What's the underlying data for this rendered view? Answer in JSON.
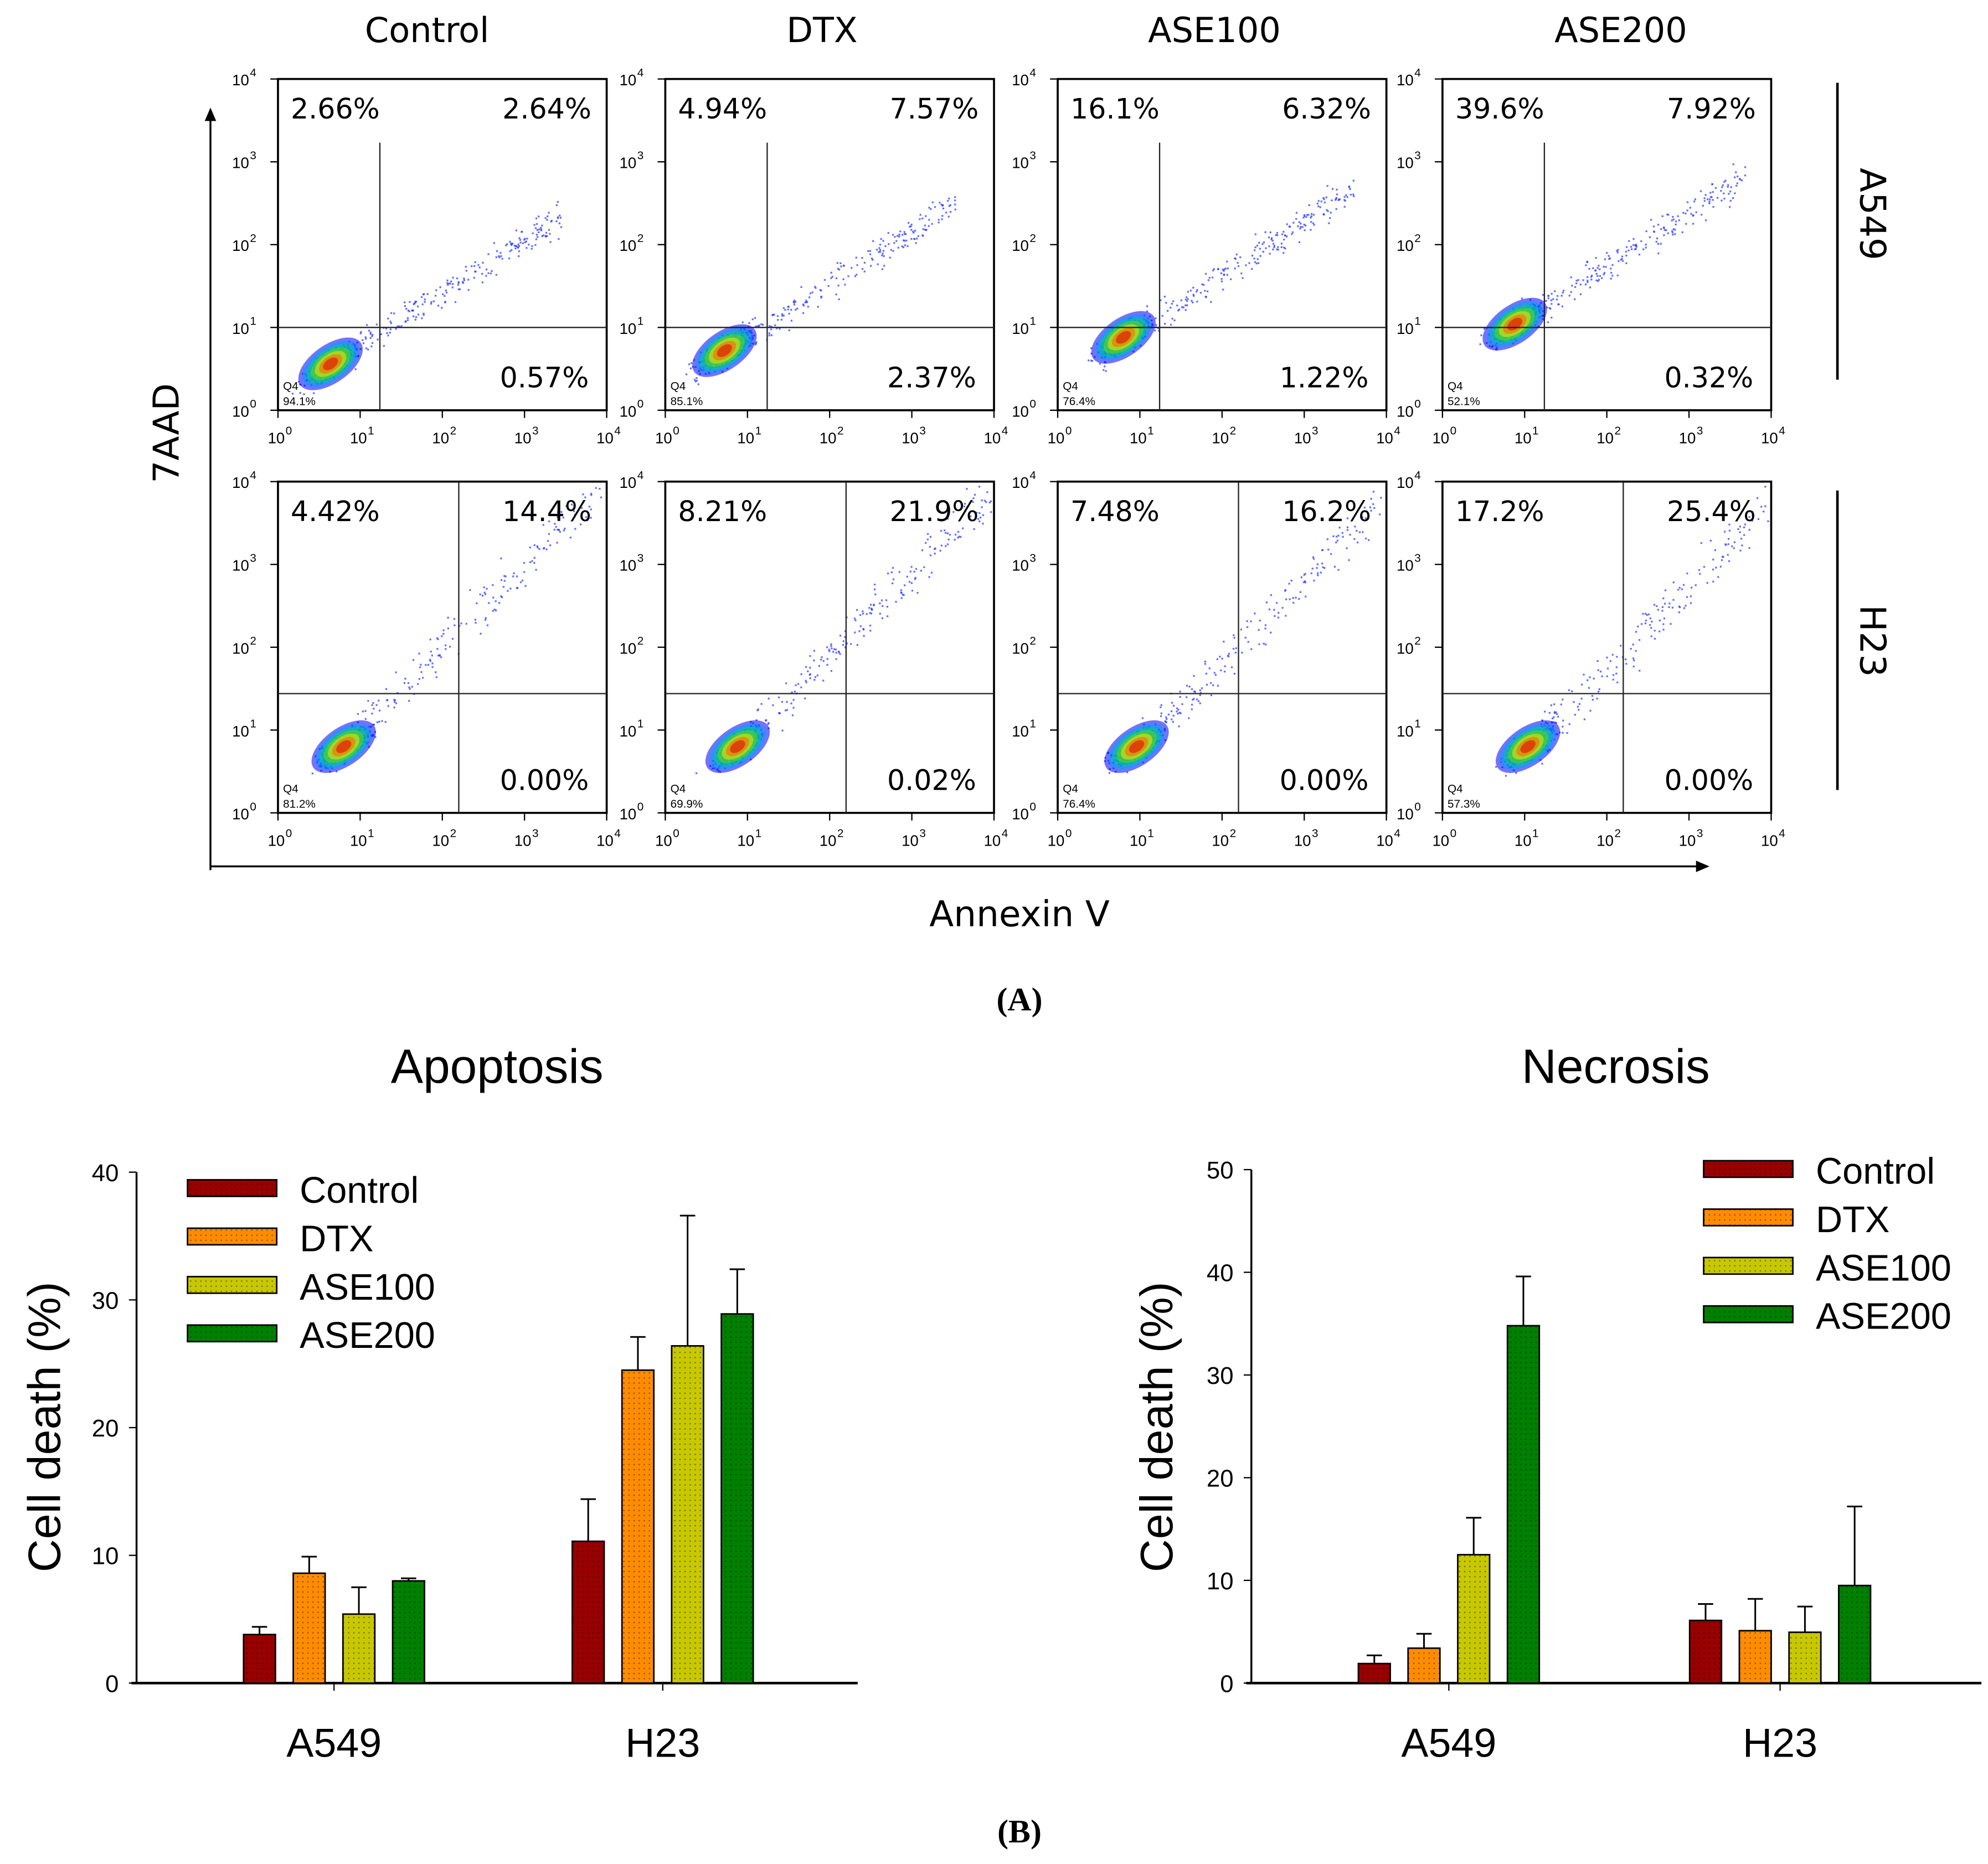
{
  "panel_a": {
    "label": "(A)",
    "x_axis_label": "Annexin V",
    "y_axis_label": "7AAD",
    "columns": [
      "Control",
      "DTX",
      "ASE100",
      "ASE200"
    ],
    "rows": [
      "A549",
      "H23"
    ],
    "tick_labels": [
      "10",
      "10",
      "10",
      "10",
      "10"
    ],
    "tick_exponents": [
      "0",
      "1",
      "2",
      "3",
      "4"
    ],
    "gate_name": "Q4",
    "plots": [
      [
        {
          "ul": "2.66%",
          "ur": "2.64%",
          "lr": "0.57%",
          "q4": "94.1%"
        },
        {
          "ul": "4.94%",
          "ur": "7.57%",
          "lr": "2.37%",
          "q4": "85.1%"
        },
        {
          "ul": "16.1%",
          "ur": "6.32%",
          "lr": "1.22%",
          "q4": "76.4%"
        },
        {
          "ul": "39.6%",
          "ur": "7.92%",
          "lr": "0.32%",
          "q4": "52.1%"
        }
      ],
      [
        {
          "ul": "4.42%",
          "ur": "14.4%",
          "lr": "0.00%",
          "q4": "81.2%"
        },
        {
          "ul": "8.21%",
          "ur": "21.9%",
          "lr": "0.02%",
          "q4": "69.9%"
        },
        {
          "ul": "7.48%",
          "ur": "16.2%",
          "lr": "0.00%",
          "q4": "76.4%"
        },
        {
          "ul": "17.2%",
          "ur": "25.4%",
          "lr": "0.00%",
          "q4": "57.3%"
        }
      ]
    ]
  },
  "panel_b": {
    "label": "(B)"
  },
  "colors": {
    "Control": "#990000",
    "DTX": "#ff8c00",
    "ASE100": "#c8c800",
    "ASE200": "#008000"
  },
  "chart_data": [
    {
      "type": "bar",
      "title": "Apoptosis",
      "xlabel": "",
      "ylabel": "Cell death (%)",
      "ylim": [
        0,
        40
      ],
      "yticks": [
        "0",
        "10",
        "20",
        "30",
        "40"
      ],
      "categories": [
        "A549",
        "H23"
      ],
      "legend_position": "top-left",
      "series": [
        {
          "name": "Control",
          "values": [
            3.8,
            11.1
          ],
          "errors": [
            0.6,
            3.3
          ]
        },
        {
          "name": "DTX",
          "values": [
            8.6,
            24.5
          ],
          "errors": [
            1.3,
            2.6
          ]
        },
        {
          "name": "ASE100",
          "values": [
            5.4,
            26.4
          ],
          "errors": [
            2.1,
            10.2
          ]
        },
        {
          "name": "ASE200",
          "values": [
            8.0,
            28.9
          ],
          "errors": [
            0.2,
            3.5
          ]
        }
      ]
    },
    {
      "type": "bar",
      "title": "Necrosis",
      "xlabel": "",
      "ylabel": "Cell death (%)",
      "ylim": [
        0,
        50
      ],
      "yticks": [
        "0",
        "10",
        "20",
        "30",
        "40",
        "50"
      ],
      "categories": [
        "A549",
        "H23"
      ],
      "legend_position": "top-right",
      "series": [
        {
          "name": "Control",
          "values": [
            1.9,
            6.1
          ],
          "errors": [
            0.8,
            1.6
          ]
        },
        {
          "name": "DTX",
          "values": [
            3.4,
            5.1
          ],
          "errors": [
            1.4,
            3.1
          ]
        },
        {
          "name": "ASE100",
          "values": [
            12.5,
            4.95
          ],
          "errors": [
            3.6,
            2.5
          ]
        },
        {
          "name": "ASE200",
          "values": [
            34.8,
            9.5
          ],
          "errors": [
            4.8,
            7.7
          ]
        }
      ]
    }
  ]
}
